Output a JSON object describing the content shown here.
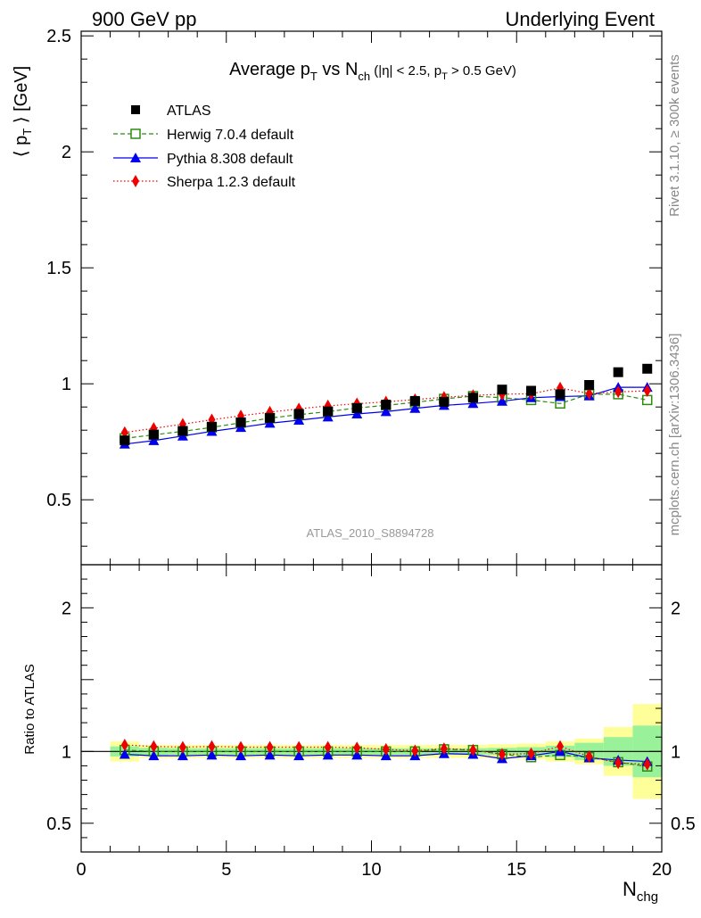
{
  "header": {
    "left": "900 GeV pp",
    "right": "Underlying Event"
  },
  "side_text": {
    "upper": "Rivet 3.1.10, ≥ 300k events",
    "lower": "mcplots.cern.ch [arXiv:1306.3436]"
  },
  "watermark": "ATLAS_2010_S8894728",
  "colors": {
    "atlas": "#000000",
    "herwig": "#2e8b10",
    "pythia": "#0000ee",
    "sherpa": "#ee0000",
    "band_inner": "#99f299",
    "band_outer": "#ffff99"
  },
  "chart_data": [
    {
      "type": "scatter",
      "title": {
        "part1": "Average p",
        "sub1": "T",
        "part2": " vs N",
        "sub2": "ch",
        "part3": " (|η| < 2.5, p",
        "sub3": "T",
        "part4": " > 0.5 GeV)"
      },
      "ylabel": {
        "pre": "⟨ p",
        "sub": "T",
        "post": " ⟩ [GeV]"
      },
      "xlim": [
        0,
        20
      ],
      "ylim": [
        0.22,
        2.52
      ],
      "y_ticks": [
        "0.5",
        "1",
        "1.5",
        "2",
        "2.5"
      ],
      "x": [
        1.5,
        2.5,
        3.5,
        4.5,
        5.5,
        6.5,
        7.5,
        8.5,
        9.5,
        10.5,
        11.5,
        12.5,
        13.5,
        14.5,
        15.5,
        16.5,
        17.5,
        18.5,
        19.5
      ],
      "legend_position": "top-left",
      "series": [
        {
          "name": "ATLAS",
          "marker": "square-filled",
          "line": "none",
          "values": [
            0.756,
            0.781,
            0.797,
            0.815,
            0.834,
            0.853,
            0.87,
            0.881,
            0.895,
            0.91,
            0.926,
            0.922,
            0.94,
            0.975,
            0.97,
            0.955,
            0.995,
            1.05,
            1.065
          ]
        },
        {
          "name": "Herwig 7.0.4 default",
          "marker": "square-open",
          "line": "dashed",
          "values": [
            0.765,
            0.78,
            0.795,
            0.812,
            0.832,
            0.852,
            0.867,
            0.88,
            0.896,
            0.907,
            0.92,
            0.935,
            0.947,
            0.94,
            0.93,
            0.915,
            0.955,
            0.955,
            0.93
          ]
        },
        {
          "name": "Pythia 8.308 default",
          "marker": "triangle",
          "line": "solid",
          "values": [
            0.74,
            0.755,
            0.775,
            0.795,
            0.812,
            0.83,
            0.843,
            0.857,
            0.87,
            0.88,
            0.894,
            0.907,
            0.915,
            0.925,
            0.94,
            0.945,
            0.948,
            0.985,
            0.985
          ]
        },
        {
          "name": "Sherpa 1.2.3 default",
          "marker": "diamond",
          "line": "dotted",
          "values": [
            0.79,
            0.808,
            0.826,
            0.845,
            0.862,
            0.878,
            0.892,
            0.905,
            0.914,
            0.922,
            0.932,
            0.942,
            0.95,
            0.955,
            0.957,
            0.982,
            0.958,
            0.965,
            0.97
          ]
        }
      ]
    },
    {
      "type": "scatter",
      "ylabel": "Ratio to ATLAS",
      "xlabel": {
        "main": "N",
        "sub": "chg"
      },
      "xlim": [
        0,
        20
      ],
      "ylim": [
        0.3,
        2.3
      ],
      "x_ticks": [
        "0",
        "5",
        "10",
        "15",
        "20"
      ],
      "y_ticks": [
        "0.5",
        "1",
        "2"
      ],
      "reference": 1,
      "bands": {
        "x_edges": [
          1,
          2,
          3,
          4,
          5,
          6,
          7,
          8,
          9,
          10,
          11,
          12,
          13,
          14,
          15,
          16,
          17,
          18,
          19,
          20
        ],
        "inner_halfwidth": [
          0.035,
          0.025,
          0.022,
          0.022,
          0.022,
          0.022,
          0.022,
          0.022,
          0.022,
          0.022,
          0.022,
          0.022,
          0.022,
          0.025,
          0.03,
          0.04,
          0.06,
          0.1,
          0.18
        ],
        "outer_halfwidth": [
          0.07,
          0.045,
          0.045,
          0.045,
          0.045,
          0.045,
          0.045,
          0.045,
          0.045,
          0.045,
          0.045,
          0.045,
          0.045,
          0.05,
          0.055,
          0.07,
          0.09,
          0.17,
          0.33
        ]
      },
      "x": [
        1.5,
        2.5,
        3.5,
        4.5,
        5.5,
        6.5,
        7.5,
        8.5,
        9.5,
        10.5,
        11.5,
        12.5,
        13.5,
        14.5,
        15.5,
        16.5,
        17.5,
        18.5,
        19.5
      ],
      "series": [
        {
          "name": "Herwig 7.0.4 default",
          "values": [
            1.01,
            1.0,
            1.0,
            1.0,
            1.0,
            1.0,
            1.0,
            1.0,
            1.0,
            1.0,
            1.0,
            1.015,
            1.01,
            0.98,
            0.96,
            0.975,
            0.96,
            0.925,
            0.895
          ]
        },
        {
          "name": "Pythia 8.308 default",
          "values": [
            0.98,
            0.97,
            0.97,
            0.975,
            0.97,
            0.975,
            0.97,
            0.975,
            0.975,
            0.97,
            0.97,
            0.985,
            0.98,
            0.95,
            0.97,
            1.0,
            0.955,
            0.94,
            0.93
          ]
        },
        {
          "name": "Sherpa 1.2.3 default",
          "values": [
            1.045,
            1.035,
            1.03,
            1.035,
            1.03,
            1.03,
            1.03,
            1.03,
            1.025,
            1.015,
            1.005,
            1.02,
            1.01,
            0.98,
            0.985,
            1.035,
            0.965,
            0.92,
            0.91
          ]
        }
      ]
    }
  ]
}
